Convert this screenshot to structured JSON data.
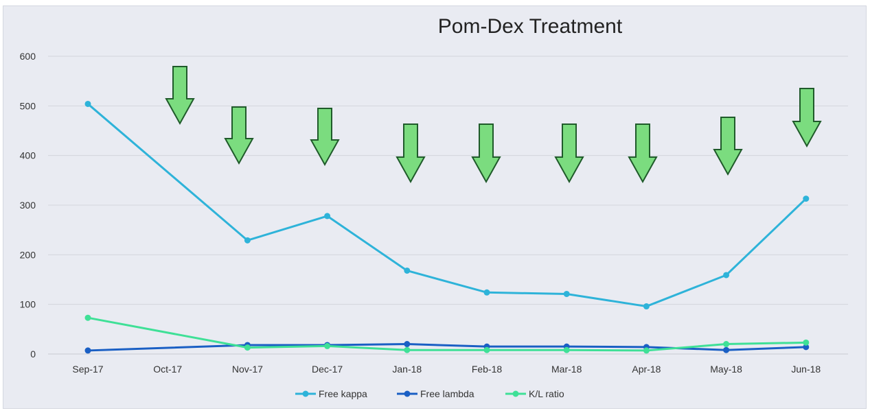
{
  "chart_data": {
    "type": "line",
    "title": "Pom-Dex Treatment",
    "xlabel": "",
    "ylabel": "",
    "categories": [
      "Sep-17",
      "Oct-17",
      "Nov-17",
      "Dec-17",
      "Jan-18",
      "Feb-18",
      "Mar-18",
      "Apr-18",
      "May-18",
      "Jun-18"
    ],
    "ylim": [
      0,
      600
    ],
    "yticks": [
      0,
      100,
      200,
      300,
      400,
      500,
      600
    ],
    "grid": true,
    "legend_position": "bottom",
    "series": [
      {
        "name": "Free kappa",
        "color": "#2eb3d9",
        "values": [
          504,
          null,
          229,
          278,
          168,
          124,
          121,
          96,
          159,
          313
        ]
      },
      {
        "name": "Free lambda",
        "color": "#1a5fc4",
        "values": [
          7,
          null,
          18,
          18,
          20,
          15,
          15,
          14,
          8,
          14
        ]
      },
      {
        "name": "K/L ratio",
        "color": "#3fe097",
        "values": [
          73,
          null,
          13,
          16,
          8,
          8,
          8,
          7,
          20,
          23
        ]
      }
    ],
    "annotations": {
      "type": "down-arrows",
      "color": "#7bdc7f",
      "arrow_months": [
        "Oct-17",
        "Nov-17",
        "Dec-17",
        "Jan-18",
        "Feb-18",
        "Mar-18",
        "Apr-18",
        "May-18",
        "Jun-18"
      ]
    }
  }
}
